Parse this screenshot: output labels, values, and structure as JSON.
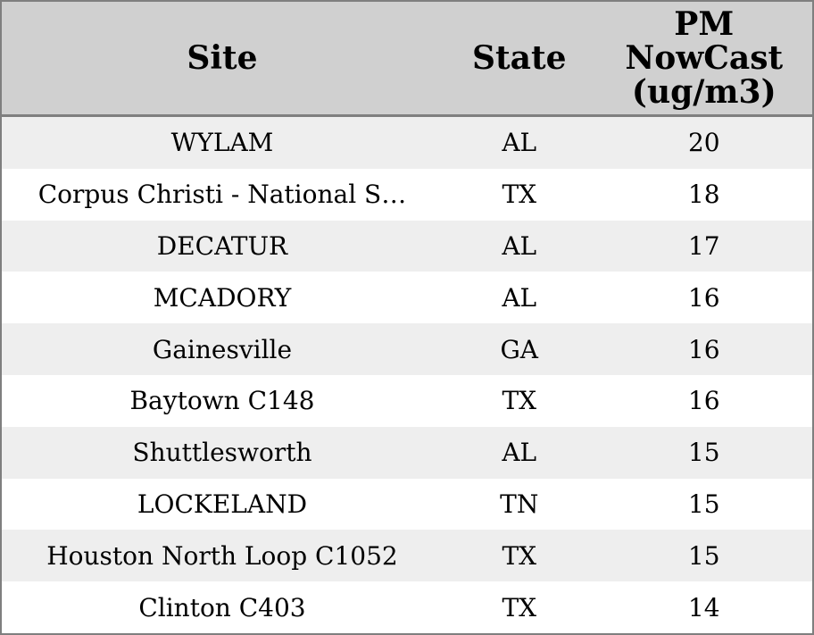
{
  "colors": {
    "border": "#7f7f7f",
    "header_bg": "#d0d0d0",
    "row_alt_bg": "#eeeeee",
    "row_bg": "#ffffff",
    "text": "#000000"
  },
  "table": {
    "headers": {
      "site": "Site",
      "state": "State",
      "pm": "PM\nNowCast\n(ug/m3)"
    },
    "rows": [
      {
        "site": "WYLAM",
        "state": "AL",
        "pm": "20"
      },
      {
        "site": "Corpus Christi - National S…",
        "state": "TX",
        "pm": "18"
      },
      {
        "site": "DECATUR",
        "state": "AL",
        "pm": "17"
      },
      {
        "site": "MCADORY",
        "state": "AL",
        "pm": "16"
      },
      {
        "site": "Gainesville",
        "state": "GA",
        "pm": "16"
      },
      {
        "site": "Baytown C148",
        "state": "TX",
        "pm": "16"
      },
      {
        "site": "Shuttlesworth",
        "state": "AL",
        "pm": "15"
      },
      {
        "site": "LOCKELAND",
        "state": "TN",
        "pm": "15"
      },
      {
        "site": "Houston North Loop C1052",
        "state": "TX",
        "pm": "15"
      },
      {
        "site": "Clinton C403",
        "state": "TX",
        "pm": "14"
      }
    ]
  },
  "chart_data": {
    "type": "table",
    "columns": [
      "Site",
      "State",
      "PM NowCast (ug/m3)"
    ],
    "rows": [
      [
        "WYLAM",
        "AL",
        20
      ],
      [
        "Corpus Christi - National S…",
        "TX",
        18
      ],
      [
        "DECATUR",
        "AL",
        17
      ],
      [
        "MCADORY",
        "AL",
        16
      ],
      [
        "Gainesville",
        "GA",
        16
      ],
      [
        "Baytown C148",
        "TX",
        16
      ],
      [
        "Shuttlesworth",
        "AL",
        15
      ],
      [
        "LOCKELAND",
        "TN",
        15
      ],
      [
        "Houston North Loop C1052",
        "TX",
        15
      ],
      [
        "Clinton C403",
        "TX",
        14
      ]
    ]
  }
}
